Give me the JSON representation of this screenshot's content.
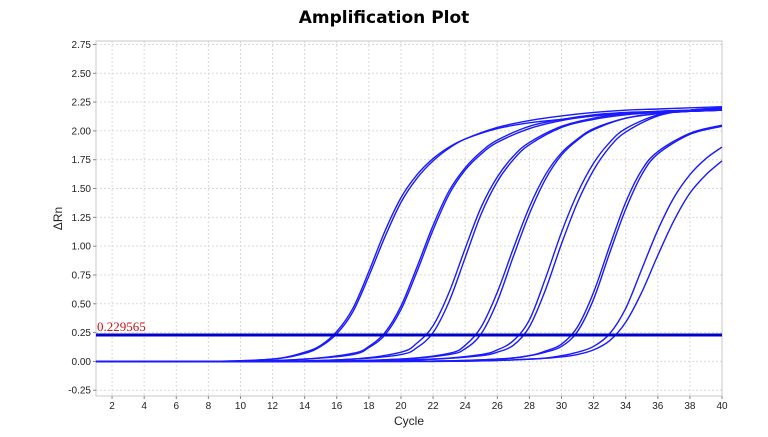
{
  "chart_data": {
    "type": "line",
    "title": "Amplification Plot",
    "xlabel": "Cycle",
    "ylabel": "ΔRn",
    "xlim": [
      1,
      40
    ],
    "ylim": [
      -0.3,
      2.78
    ],
    "x_ticks": [
      2,
      4,
      6,
      8,
      10,
      12,
      14,
      16,
      18,
      20,
      22,
      24,
      26,
      28,
      30,
      32,
      34,
      36,
      38,
      40
    ],
    "y_ticks": [
      -0.25,
      0.0,
      0.25,
      0.5,
      0.75,
      1.0,
      1.25,
      1.5,
      1.75,
      2.0,
      2.25,
      2.5,
      2.75
    ],
    "y_tick_labels": [
      "-0.25",
      "0.00",
      "0.25",
      "0.50",
      "0.75",
      "1.00",
      "1.25",
      "1.50",
      "1.75",
      "2.00",
      "2.25",
      "2.50",
      "2.75"
    ],
    "grid": true,
    "threshold": {
      "value": 0.229565,
      "label": "0.229565",
      "color": "#cc1111"
    },
    "line_color": "#1a1aff",
    "threshold_line_color": "#0000cc",
    "series": [
      {
        "x": [
          1,
          8,
          12,
          14,
          15,
          16,
          17,
          18,
          19,
          20,
          21,
          22,
          23,
          24,
          26,
          28,
          30,
          32,
          34,
          36,
          38,
          40
        ],
        "y": [
          0,
          0,
          0.02,
          0.08,
          0.14,
          0.26,
          0.46,
          0.78,
          1.13,
          1.42,
          1.62,
          1.76,
          1.86,
          1.93,
          2.02,
          2.07,
          2.1,
          2.13,
          2.15,
          2.16,
          2.17,
          2.18
        ]
      },
      {
        "x": [
          1,
          8,
          12,
          14,
          15,
          16,
          17,
          18,
          19,
          20,
          21,
          22,
          23,
          24,
          26,
          28,
          30,
          32,
          34,
          36,
          38,
          40
        ],
        "y": [
          0,
          0,
          0.02,
          0.07,
          0.13,
          0.24,
          0.43,
          0.74,
          1.08,
          1.38,
          1.59,
          1.74,
          1.85,
          1.93,
          2.03,
          2.09,
          2.13,
          2.16,
          2.18,
          2.19,
          2.2,
          2.21
        ]
      },
      {
        "x": [
          1,
          10,
          14,
          17,
          18,
          19,
          20,
          21,
          22,
          23,
          24,
          25,
          26,
          28,
          30,
          32,
          34,
          36,
          38,
          40
        ],
        "y": [
          0,
          0,
          0.02,
          0.07,
          0.13,
          0.25,
          0.48,
          0.82,
          1.18,
          1.48,
          1.68,
          1.82,
          1.92,
          2.04,
          2.1,
          2.14,
          2.16,
          2.17,
          2.18,
          2.19
        ]
      },
      {
        "x": [
          1,
          10,
          14,
          17,
          18,
          19,
          20,
          21,
          22,
          23,
          24,
          25,
          26,
          28,
          30,
          32,
          34,
          36,
          38,
          40
        ],
        "y": [
          0,
          0,
          0.02,
          0.06,
          0.12,
          0.23,
          0.45,
          0.78,
          1.14,
          1.45,
          1.66,
          1.8,
          1.9,
          2.02,
          2.09,
          2.13,
          2.15,
          2.16,
          2.17,
          2.18
        ]
      },
      {
        "x": [
          1,
          12,
          17,
          20,
          21,
          22,
          23,
          24,
          25,
          26,
          27,
          28,
          30,
          32,
          34,
          36,
          38,
          40
        ],
        "y": [
          0,
          0,
          0.02,
          0.08,
          0.16,
          0.31,
          0.6,
          0.98,
          1.34,
          1.6,
          1.78,
          1.9,
          2.04,
          2.11,
          2.15,
          2.17,
          2.18,
          2.19
        ]
      },
      {
        "x": [
          1,
          12,
          17,
          20,
          21,
          22,
          23,
          24,
          25,
          26,
          27,
          28,
          30,
          32,
          34,
          36,
          38,
          40
        ],
        "y": [
          0,
          0,
          0.02,
          0.06,
          0.12,
          0.25,
          0.52,
          0.9,
          1.28,
          1.56,
          1.75,
          1.88,
          2.03,
          2.1,
          2.14,
          2.16,
          2.17,
          2.18
        ]
      },
      {
        "x": [
          1,
          14,
          20,
          23,
          24,
          25,
          26,
          27,
          28,
          29,
          30,
          31,
          32,
          34,
          36,
          38,
          40
        ],
        "y": [
          0,
          0,
          0.02,
          0.07,
          0.14,
          0.3,
          0.6,
          0.98,
          1.34,
          1.62,
          1.81,
          1.93,
          2.02,
          2.11,
          2.15,
          2.17,
          2.18
        ]
      },
      {
        "x": [
          1,
          14,
          20,
          23,
          24,
          25,
          26,
          27,
          28,
          29,
          30,
          31,
          32,
          34,
          36,
          38,
          40
        ],
        "y": [
          0,
          0,
          0.02,
          0.06,
          0.11,
          0.24,
          0.52,
          0.91,
          1.28,
          1.58,
          1.79,
          1.92,
          2.01,
          2.11,
          2.15,
          2.17,
          2.18
        ]
      },
      {
        "x": [
          1,
          16,
          22,
          25,
          26,
          27,
          28,
          29,
          30,
          31,
          32,
          33,
          34,
          36,
          38,
          40
        ],
        "y": [
          0,
          0,
          0.02,
          0.06,
          0.1,
          0.18,
          0.36,
          0.72,
          1.12,
          1.46,
          1.72,
          1.9,
          2.02,
          2.14,
          2.18,
          2.2
        ]
      },
      {
        "x": [
          1,
          16,
          22,
          25,
          26,
          27,
          28,
          29,
          30,
          31,
          32,
          33,
          34,
          36,
          38,
          40
        ],
        "y": [
          0,
          0,
          0.02,
          0.05,
          0.08,
          0.14,
          0.3,
          0.62,
          1.02,
          1.38,
          1.66,
          1.86,
          1.99,
          2.13,
          2.18,
          2.2
        ]
      },
      {
        "x": [
          1,
          20,
          26,
          28,
          29,
          30,
          31,
          32,
          33,
          34,
          35,
          36,
          38,
          40
        ],
        "y": [
          0,
          0,
          0.02,
          0.05,
          0.09,
          0.15,
          0.3,
          0.6,
          1.0,
          1.38,
          1.66,
          1.82,
          1.98,
          2.05
        ]
      },
      {
        "x": [
          1,
          20,
          26,
          28,
          29,
          30,
          31,
          32,
          33,
          34,
          35,
          36,
          38,
          40
        ],
        "y": [
          0,
          0,
          0.02,
          0.05,
          0.08,
          0.13,
          0.26,
          0.54,
          0.94,
          1.32,
          1.62,
          1.8,
          1.97,
          2.04
        ]
      },
      {
        "x": [
          1,
          22,
          28,
          30,
          31,
          32,
          33,
          34,
          35,
          36,
          37,
          38,
          39,
          40
        ],
        "y": [
          0,
          0,
          0.02,
          0.05,
          0.08,
          0.13,
          0.24,
          0.46,
          0.8,
          1.14,
          1.42,
          1.62,
          1.76,
          1.86
        ]
      },
      {
        "x": [
          1,
          22,
          28,
          30,
          31,
          32,
          33,
          34,
          35,
          36,
          37,
          38,
          39,
          40
        ],
        "y": [
          0,
          0,
          0.02,
          0.04,
          0.06,
          0.1,
          0.18,
          0.34,
          0.6,
          0.92,
          1.22,
          1.46,
          1.62,
          1.74
        ]
      }
    ]
  }
}
